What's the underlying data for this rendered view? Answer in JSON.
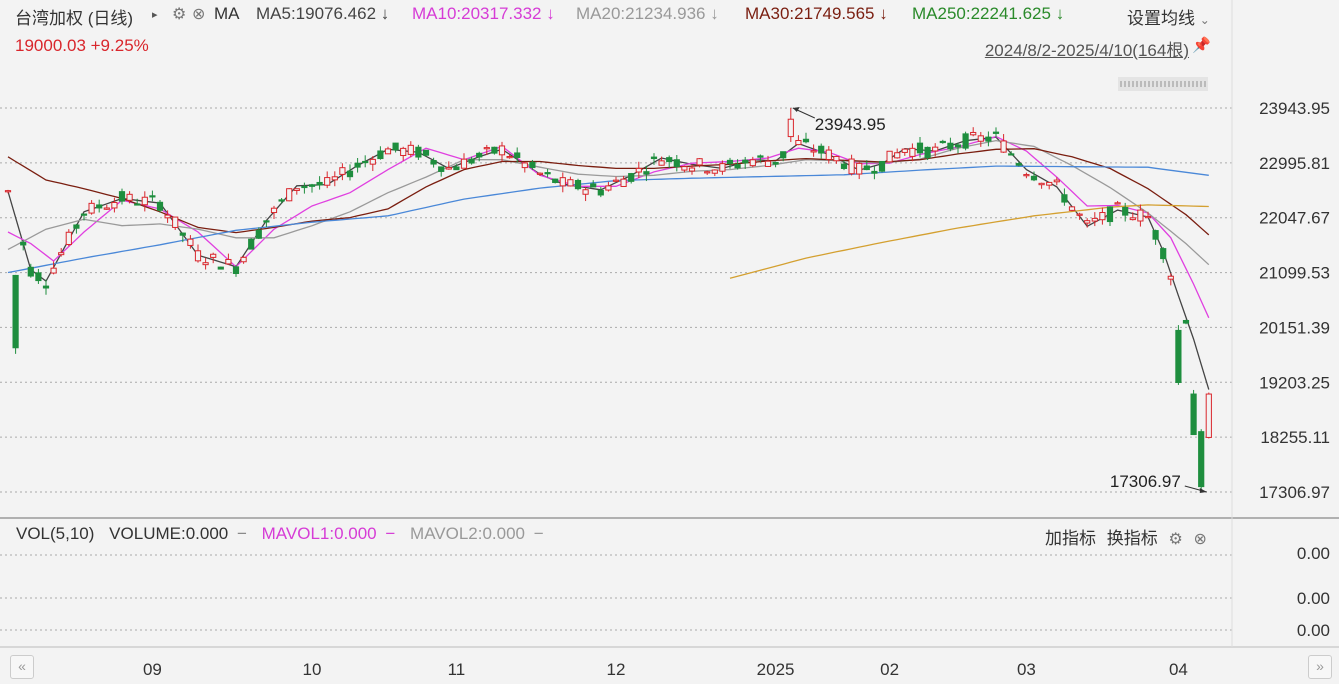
{
  "header": {
    "title": "台湾加权 (日线)",
    "indicator": "MA",
    "ma5": "MA5:19076.462",
    "ma10": "MA10:20317.332",
    "ma20": "MA20:21234.936",
    "ma30": "MA30:21749.565",
    "ma250": "MA250:22241.625",
    "down_arrow": "↓",
    "settings_label": "设置均线",
    "quote": "19000.03 +9.25%",
    "range_label": "2024/8/2-2025/4/10(164根)"
  },
  "volume_panel": {
    "vol_label": "VOL(5,10)",
    "volume_label": "VOLUME:0.000",
    "mavol1_label": "MAVOL1:0.000",
    "mavol2_label": "MAVOL2:0.000",
    "dash": "−",
    "add_indicator": "加指标",
    "switch_indicator": "换指标"
  },
  "colors": {
    "up": "#d9262c",
    "down": "#1e8e3e",
    "ma5": "#444444",
    "ma10": "#e040e0",
    "ma20": "#9a9a9a",
    "ma30": "#7a1e10",
    "ma60": "#4a88d8",
    "ma250": "#d4a030",
    "grid": "#aaaaaa"
  },
  "chart_data": {
    "type": "candlestick",
    "period": "日线",
    "ylim": [
      17306.97,
      23943.95
    ],
    "y_ticks": [
      "23943.95",
      "22995.81",
      "22047.67",
      "21099.53",
      "20151.39",
      "19203.25",
      "18255.11",
      "17306.97"
    ],
    "x_ticks": [
      {
        "label": "09",
        "index": 19
      },
      {
        "label": "10",
        "index": 40
      },
      {
        "label": "11",
        "index": 59
      },
      {
        "label": "12",
        "index": 80
      },
      {
        "label": "2025",
        "index": 101
      },
      {
        "label": "02",
        "index": 116
      },
      {
        "label": "03",
        "index": 134
      },
      {
        "label": "04",
        "index": 154
      }
    ],
    "high_annotation": {
      "label": "23943.95",
      "index": 103,
      "value": 23943.95
    },
    "low_annotation": {
      "label": "17306.97",
      "index": 158,
      "value": 17306.97
    },
    "volume_ticks": [
      "0.00",
      "0.00",
      "0.00"
    ],
    "ma_series": [
      {
        "name": "MA5",
        "anchors": [
          [
            0,
            22500
          ],
          [
            3,
            21150
          ],
          [
            5,
            20950
          ],
          [
            10,
            22150
          ],
          [
            15,
            22380
          ],
          [
            20,
            22300
          ],
          [
            25,
            21400
          ],
          [
            30,
            21200
          ],
          [
            34,
            22000
          ],
          [
            38,
            22600
          ],
          [
            42,
            22620
          ],
          [
            46,
            22950
          ],
          [
            50,
            23230
          ],
          [
            54,
            23180
          ],
          [
            58,
            22900
          ],
          [
            62,
            23100
          ],
          [
            65,
            23230
          ],
          [
            70,
            22800
          ],
          [
            73,
            22630
          ],
          [
            78,
            22530
          ],
          [
            82,
            22780
          ],
          [
            86,
            23080
          ],
          [
            90,
            22970
          ],
          [
            94,
            22900
          ],
          [
            98,
            23050
          ],
          [
            101,
            23030
          ],
          [
            104,
            23330
          ],
          [
            108,
            23140
          ],
          [
            112,
            22870
          ],
          [
            115,
            22980
          ],
          [
            118,
            23240
          ],
          [
            122,
            23200
          ],
          [
            126,
            23380
          ],
          [
            130,
            23440
          ],
          [
            134,
            22880
          ],
          [
            138,
            22580
          ],
          [
            142,
            21900
          ],
          [
            146,
            22180
          ],
          [
            150,
            22060
          ],
          [
            152,
            21470
          ],
          [
            154,
            20700
          ],
          [
            156,
            19950
          ],
          [
            158,
            19076
          ]
        ]
      },
      {
        "name": "MA10",
        "anchors": [
          [
            0,
            21800
          ],
          [
            3,
            21600
          ],
          [
            6,
            21300
          ],
          [
            10,
            21800
          ],
          [
            15,
            22350
          ],
          [
            20,
            22200
          ],
          [
            25,
            21800
          ],
          [
            30,
            21200
          ],
          [
            35,
            21850
          ],
          [
            40,
            22250
          ],
          [
            45,
            22480
          ],
          [
            50,
            22880
          ],
          [
            55,
            23250
          ],
          [
            60,
            23050
          ],
          [
            65,
            23280
          ],
          [
            70,
            22780
          ],
          [
            75,
            22590
          ],
          [
            80,
            22590
          ],
          [
            85,
            22840
          ],
          [
            90,
            22990
          ],
          [
            95,
            23020
          ],
          [
            100,
            23080
          ],
          [
            104,
            23250
          ],
          [
            108,
            23180
          ],
          [
            112,
            22980
          ],
          [
            116,
            22990
          ],
          [
            120,
            23140
          ],
          [
            125,
            23270
          ],
          [
            130,
            23450
          ],
          [
            134,
            23200
          ],
          [
            138,
            22750
          ],
          [
            142,
            22250
          ],
          [
            146,
            22260
          ],
          [
            150,
            22130
          ],
          [
            153,
            21700
          ],
          [
            156,
            20900
          ],
          [
            158,
            20317
          ]
        ]
      },
      {
        "name": "MA20",
        "anchors": [
          [
            0,
            21500
          ],
          [
            5,
            21850
          ],
          [
            10,
            22020
          ],
          [
            15,
            21910
          ],
          [
            20,
            21940
          ],
          [
            25,
            21850
          ],
          [
            30,
            21700
          ],
          [
            35,
            21700
          ],
          [
            40,
            21910
          ],
          [
            45,
            22150
          ],
          [
            50,
            22480
          ],
          [
            55,
            22750
          ],
          [
            60,
            23050
          ],
          [
            65,
            23050
          ],
          [
            70,
            22920
          ],
          [
            75,
            22800
          ],
          [
            80,
            22760
          ],
          [
            85,
            22780
          ],
          [
            90,
            22850
          ],
          [
            95,
            22880
          ],
          [
            100,
            22950
          ],
          [
            105,
            23050
          ],
          [
            110,
            23030
          ],
          [
            115,
            22990
          ],
          [
            120,
            23060
          ],
          [
            125,
            23250
          ],
          [
            130,
            23380
          ],
          [
            135,
            23280
          ],
          [
            140,
            22950
          ],
          [
            145,
            22570
          ],
          [
            150,
            22130
          ],
          [
            155,
            21600
          ],
          [
            158,
            21235
          ]
        ]
      },
      {
        "name": "MA30",
        "anchors": [
          [
            0,
            23100
          ],
          [
            5,
            22700
          ],
          [
            10,
            22550
          ],
          [
            15,
            22380
          ],
          [
            20,
            22150
          ],
          [
            25,
            21880
          ],
          [
            30,
            21790
          ],
          [
            35,
            21880
          ],
          [
            40,
            21990
          ],
          [
            45,
            22050
          ],
          [
            50,
            22200
          ],
          [
            55,
            22580
          ],
          [
            60,
            22880
          ],
          [
            65,
            23020
          ],
          [
            70,
            23020
          ],
          [
            75,
            22950
          ],
          [
            80,
            22900
          ],
          [
            85,
            22900
          ],
          [
            90,
            22940
          ],
          [
            95,
            22970
          ],
          [
            100,
            23030
          ],
          [
            105,
            23070
          ],
          [
            110,
            23040
          ],
          [
            115,
            23010
          ],
          [
            120,
            23050
          ],
          [
            125,
            23150
          ],
          [
            130,
            23230
          ],
          [
            135,
            23240
          ],
          [
            140,
            23100
          ],
          [
            145,
            22900
          ],
          [
            150,
            22550
          ],
          [
            155,
            22100
          ],
          [
            158,
            21750
          ]
        ]
      },
      {
        "name": "MA60",
        "anchors": [
          [
            0,
            21100
          ],
          [
            10,
            21350
          ],
          [
            20,
            21580
          ],
          [
            30,
            21830
          ],
          [
            40,
            21970
          ],
          [
            50,
            22080
          ],
          [
            60,
            22370
          ],
          [
            70,
            22560
          ],
          [
            80,
            22690
          ],
          [
            90,
            22730
          ],
          [
            100,
            22760
          ],
          [
            110,
            22790
          ],
          [
            120,
            22870
          ],
          [
            130,
            22940
          ],
          [
            140,
            22930
          ],
          [
            150,
            22920
          ],
          [
            158,
            22780
          ]
        ]
      },
      {
        "name": "MA250",
        "anchors": [
          [
            95,
            21000
          ],
          [
            105,
            21350
          ],
          [
            115,
            21620
          ],
          [
            125,
            21870
          ],
          [
            135,
            22080
          ],
          [
            145,
            22230
          ],
          [
            150,
            22270
          ],
          [
            158,
            22241
          ]
        ]
      }
    ]
  }
}
